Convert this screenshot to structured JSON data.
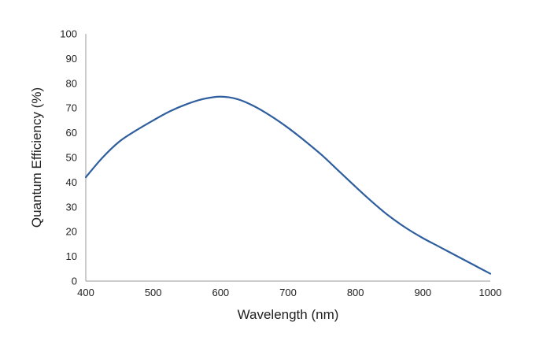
{
  "chart_data": {
    "type": "line",
    "title": "",
    "xlabel": "Wavelength (nm)",
    "ylabel": "Quantum Efficiency (%)",
    "xlim": [
      400,
      1000
    ],
    "ylim": [
      0,
      100
    ],
    "x_ticks": [
      400,
      500,
      600,
      700,
      800,
      900,
      1000
    ],
    "y_ticks": [
      0,
      10,
      20,
      30,
      40,
      50,
      60,
      70,
      80,
      90,
      100
    ],
    "grid": false,
    "legend": "none",
    "series": [
      {
        "color": "#2e5e9e",
        "x": [
          400,
          425,
          450,
          475,
          500,
          525,
          550,
          575,
          600,
          625,
          650,
          675,
          700,
          725,
          750,
          775,
          800,
          825,
          850,
          875,
          900,
          925,
          950,
          975,
          1000
        ],
        "y": [
          42,
          50,
          56.5,
          61,
          65,
          68.7,
          71.6,
          73.7,
          74.6,
          73.6,
          70.7,
          66.7,
          62,
          56.7,
          51,
          44.6,
          38.2,
          32,
          26.3,
          21.5,
          17.4,
          13.8,
          10.2,
          6.6,
          3
        ]
      }
    ]
  }
}
